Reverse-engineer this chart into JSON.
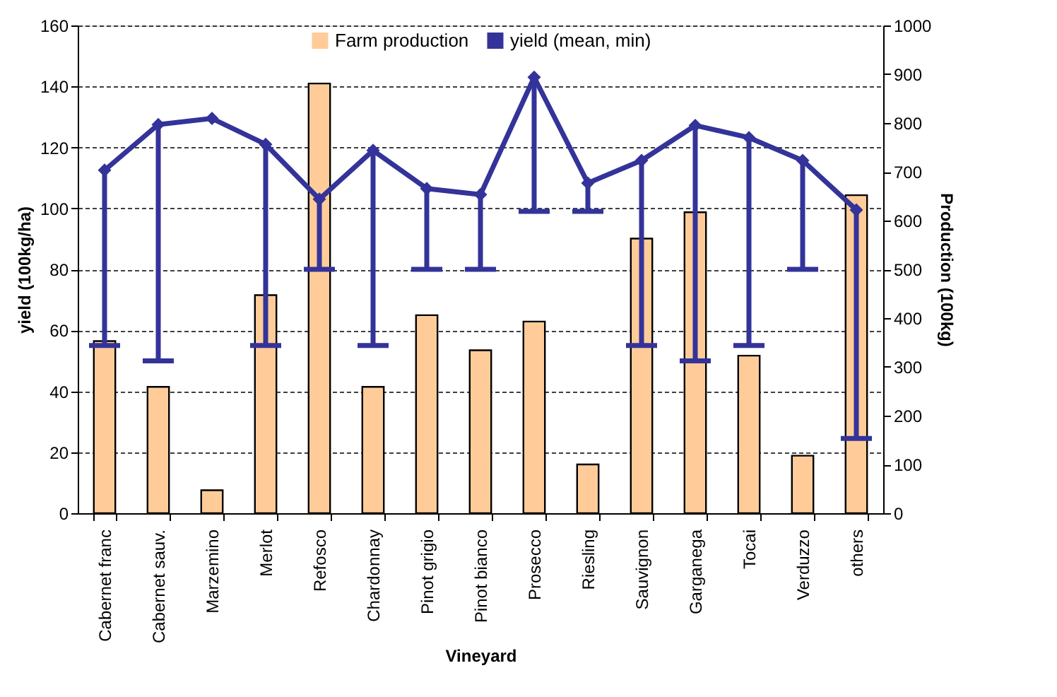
{
  "chart_data": {
    "type": "bar",
    "xlabel": "Vineyard",
    "ylabel": "yield (100kg/ha)",
    "y2label": "Production (100kg)",
    "categories": [
      "Cabernet franc",
      "Cabernet sauv.",
      "Marzemino",
      "Merlot",
      "Refosco",
      "Chardonnay",
      "Pinot grigio",
      "Pinot bianco",
      "Prosecco",
      "Riesling",
      "Sauvignon",
      "Garganega",
      "Tocai",
      "Verduzzo",
      "others"
    ],
    "series": [
      {
        "name": "Farm production",
        "axis": "y2",
        "color": "#ffcc99",
        "values": [
          353,
          259,
          47,
          447,
          881,
          259,
          406,
          334,
          393,
          100,
          563,
          617,
          323,
          118,
          652
        ]
      },
      {
        "name": "yield (mean, min)",
        "type": "line",
        "axis": "y",
        "color": "#333399",
        "marker": "diamond",
        "values": [
          112.5,
          127.5,
          129.5,
          121,
          103,
          119,
          106.5,
          104.5,
          143,
          108.3,
          115.7,
          127.2,
          123.2,
          115.7,
          99.5
        ],
        "errors": [
          [
            55,
            112.5
          ],
          [
            50,
            127.5
          ],
          null,
          [
            55,
            121
          ],
          [
            80,
            103
          ],
          [
            55,
            119
          ],
          [
            80,
            106.5
          ],
          [
            80,
            104.5
          ],
          [
            99,
            143
          ],
          [
            99,
            108.3
          ],
          [
            55,
            115.7
          ],
          [
            50,
            127.2
          ],
          [
            55,
            123.2
          ],
          [
            80,
            115.7
          ],
          [
            24.5,
            99.5
          ]
        ]
      }
    ],
    "ylim": [
      0,
      160
    ],
    "yticks": [
      0,
      20,
      40,
      60,
      80,
      100,
      120,
      140,
      160
    ],
    "y2lim": [
      0,
      1000
    ],
    "y2ticks": [
      0,
      100,
      200,
      300,
      400,
      500,
      600,
      700,
      800,
      900,
      1000
    ],
    "grid": "y",
    "legend": "top"
  }
}
